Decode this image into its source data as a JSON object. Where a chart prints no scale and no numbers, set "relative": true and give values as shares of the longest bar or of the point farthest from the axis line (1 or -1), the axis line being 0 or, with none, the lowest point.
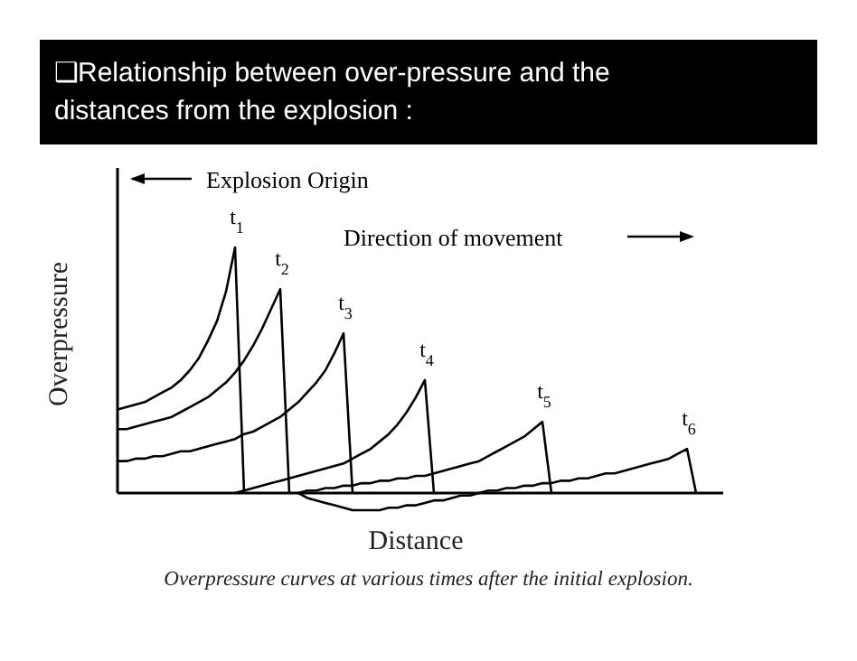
{
  "chart_data": {
    "type": "line",
    "relative": true,
    "title": "❑Relationship between over-pressure and the distances from the explosion :",
    "xlabel": "Distance",
    "ylabel": "Overpressure",
    "annotations": [
      "Explosion Origin",
      "Direction of movement",
      "Overpressure curves at various times after the initial explosion."
    ],
    "categories": [
      null,
      null,
      null,
      null,
      null,
      null,
      null,
      null,
      null,
      null,
      null,
      null,
      null,
      null,
      null,
      null,
      null,
      null,
      null,
      null,
      null,
      null,
      null,
      null,
      null,
      null,
      null,
      null,
      null,
      null,
      null,
      null,
      null,
      null,
      null,
      null,
      null,
      null,
      null,
      null,
      null,
      null,
      null,
      null,
      null,
      null,
      null,
      null,
      null,
      null,
      null,
      null,
      null,
      null,
      null,
      null,
      null,
      null,
      null,
      null,
      null,
      null,
      null,
      null,
      null,
      null,
      null,
      null
    ],
    "series": [
      {
        "name": "t$_{1}$",
        "color": "#000000",
        "values": [
          0.34,
          0.35,
          0.36,
          0.37,
          0.39,
          0.41,
          0.43,
          0.46,
          0.5,
          0.55,
          0.62,
          0.7,
          0.82,
          1.0,
          0,
          null,
          null,
          null,
          null,
          null,
          null,
          null,
          null,
          null,
          null,
          null,
          null,
          null,
          null,
          null,
          null,
          null,
          null,
          null,
          null,
          null,
          null,
          null,
          null,
          null,
          null,
          null,
          null,
          null,
          null,
          null,
          null,
          null,
          null,
          null,
          null,
          null,
          null,
          null,
          null,
          null,
          null,
          null,
          null,
          null,
          null,
          null,
          null,
          null,
          null,
          null,
          null,
          null
        ]
      },
      {
        "name": "t$_{2}$",
        "color": "#000000",
        "values": [
          0.26,
          0.26,
          0.27,
          0.28,
          0.29,
          0.3,
          0.31,
          0.33,
          0.35,
          0.37,
          0.39,
          0.42,
          0.45,
          0.49,
          0.54,
          0.6,
          0.67,
          0.75,
          0.83,
          0,
          null,
          null,
          null,
          null,
          null,
          null,
          null,
          null,
          null,
          null,
          null,
          null,
          null,
          null,
          null,
          null,
          null,
          null,
          null,
          null,
          null,
          null,
          null,
          null,
          null,
          null,
          null,
          null,
          null,
          null,
          null,
          null,
          null,
          null,
          null,
          null,
          null,
          null,
          null,
          null,
          null,
          null,
          null,
          null,
          null,
          null,
          null,
          null
        ]
      },
      {
        "name": "t$_{3}$",
        "color": "#000000",
        "values": [
          0.13,
          0.13,
          0.14,
          0.14,
          0.15,
          0.15,
          0.16,
          0.17,
          0.17,
          0.18,
          0.19,
          0.2,
          0.21,
          0.22,
          0.24,
          0.25,
          0.27,
          0.29,
          0.31,
          0.34,
          0.37,
          0.41,
          0.45,
          0.5,
          0.57,
          0.65,
          0,
          null,
          null,
          null,
          null,
          null,
          null,
          null,
          null,
          null,
          null,
          null,
          null,
          null,
          null,
          null,
          null,
          null,
          null,
          null,
          null,
          null,
          null,
          null,
          null,
          null,
          null,
          null,
          null,
          null,
          null,
          null,
          null,
          null,
          null,
          null,
          null,
          null,
          null,
          null,
          null,
          null
        ]
      },
      {
        "name": "t$_{4}$",
        "color": "#000000",
        "values": [
          null,
          null,
          null,
          null,
          null,
          null,
          null,
          null,
          null,
          null,
          null,
          null,
          null,
          0,
          0.01,
          0.02,
          0.03,
          0.04,
          0.05,
          0.06,
          0.07,
          0.08,
          0.09,
          0.1,
          0.11,
          0.12,
          0.14,
          0.16,
          0.18,
          0.21,
          0.24,
          0.28,
          0.33,
          0.39,
          0.46,
          0,
          null,
          null,
          null,
          null,
          null,
          null,
          null,
          null,
          null,
          null,
          null,
          null,
          null,
          null,
          null,
          null,
          null,
          null,
          null,
          null,
          null,
          null,
          null,
          null,
          null,
          null,
          null,
          null,
          null,
          null,
          null,
          null
        ]
      },
      {
        "name": "t$_{5}$",
        "color": "#000000",
        "values": [
          null,
          null,
          null,
          null,
          null,
          null,
          null,
          null,
          null,
          null,
          null,
          null,
          null,
          null,
          null,
          null,
          null,
          null,
          null,
          null,
          0,
          0.01,
          0.01,
          0.02,
          0.02,
          0.03,
          0.03,
          0.04,
          0.04,
          0.05,
          0.05,
          0.06,
          0.06,
          0.07,
          0.07,
          0.08,
          0.09,
          0.1,
          0.11,
          0.12,
          0.13,
          0.15,
          0.17,
          0.19,
          0.21,
          0.23,
          0.26,
          0.29,
          0,
          null,
          null,
          null,
          null,
          null,
          null,
          null,
          null,
          null,
          null,
          null,
          null,
          null,
          null,
          null,
          null,
          null,
          null,
          null
        ]
      },
      {
        "name": "t$_{6}$",
        "color": "#000000",
        "values": [
          null,
          null,
          null,
          null,
          null,
          null,
          null,
          null,
          null,
          null,
          null,
          null,
          null,
          null,
          null,
          null,
          null,
          null,
          null,
          null,
          0,
          -0.02,
          -0.03,
          -0.04,
          -0.05,
          -0.06,
          -0.07,
          -0.07,
          -0.07,
          -0.07,
          -0.06,
          -0.06,
          -0.05,
          -0.05,
          -0.04,
          -0.03,
          -0.03,
          -0.02,
          -0.01,
          -0.01,
          0,
          0.01,
          0.01,
          0.02,
          0.02,
          0.03,
          0.03,
          0.04,
          0.04,
          0.05,
          0.05,
          0.06,
          0.06,
          0.07,
          0.08,
          0.08,
          0.09,
          0.1,
          0.11,
          0.12,
          0.13,
          0.14,
          0.16,
          0.18,
          0,
          null,
          null,
          null
        ]
      }
    ],
    "marker": "none",
    "line_style": "solid"
  }
}
